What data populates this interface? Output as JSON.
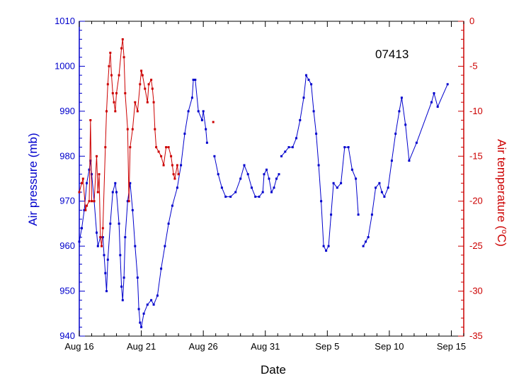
{
  "chart_data": {
    "type": "line",
    "annotation": "07413",
    "xlabel": "Date",
    "ylabel_left": "Air pressure (mb)",
    "ylabel_right_prefix": "Air temperature (",
    "ylabel_right_unit_sup": "o",
    "ylabel_right_unit": "C)",
    "x_unit": "days since Aug 16",
    "xlim": [
      0,
      31
    ],
    "x_ticks": [
      {
        "value": 0,
        "label": "Aug 16"
      },
      {
        "value": 5,
        "label": "Aug 21"
      },
      {
        "value": 10,
        "label": "Aug 26"
      },
      {
        "value": 15,
        "label": "Aug 31"
      },
      {
        "value": 20,
        "label": "Sep 5"
      },
      {
        "value": 25,
        "label": "Sep 10"
      },
      {
        "value": 30,
        "label": "Sep 15"
      }
    ],
    "ylim_left": [
      940,
      1010
    ],
    "yticks_left": [
      "1010",
      "1000",
      "990",
      "980",
      "970",
      "960",
      "950",
      "940"
    ],
    "ylim_right": [
      -35,
      0
    ],
    "yticks_right": [
      "0",
      "-5",
      "-10",
      "-15",
      "-20",
      "-25",
      "-30",
      "-35"
    ],
    "colors": {
      "pressure": "#0000cc",
      "temperature": "#cc0000"
    },
    "series": [
      {
        "name": "Air pressure",
        "axis": "left",
        "segments": [
          [
            [
              0.0,
              961
            ],
            [
              0.2,
              964
            ],
            [
              0.4,
              968
            ],
            [
              0.6,
              974
            ],
            [
              0.8,
              977
            ],
            [
              0.9,
              979
            ],
            [
              1.0,
              976
            ],
            [
              1.2,
              970
            ],
            [
              1.4,
              963
            ],
            [
              1.5,
              960
            ],
            [
              1.7,
              962
            ],
            [
              1.9,
              962
            ],
            [
              2.0,
              958
            ],
            [
              2.1,
              954
            ],
            [
              2.2,
              950
            ],
            [
              2.3,
              957
            ],
            [
              2.5,
              965
            ],
            [
              2.7,
              972
            ],
            [
              2.9,
              974
            ],
            [
              3.0,
              972
            ],
            [
              3.2,
              965
            ],
            [
              3.3,
              958
            ],
            [
              3.4,
              951
            ],
            [
              3.5,
              948
            ],
            [
              3.6,
              953
            ],
            [
              3.7,
              962
            ],
            [
              3.9,
              970
            ],
            [
              4.1,
              974
            ],
            [
              4.3,
              968
            ],
            [
              4.5,
              960
            ],
            [
              4.7,
              953
            ],
            [
              4.8,
              946
            ],
            [
              4.9,
              943
            ],
            [
              5.0,
              942
            ],
            [
              5.2,
              945
            ],
            [
              5.5,
              947
            ],
            [
              5.8,
              948
            ],
            [
              6.0,
              947
            ],
            [
              6.3,
              949
            ],
            [
              6.6,
              955
            ],
            [
              6.9,
              960
            ],
            [
              7.2,
              965
            ],
            [
              7.5,
              969
            ],
            [
              7.9,
              973
            ],
            [
              8.2,
              978
            ],
            [
              8.5,
              985
            ],
            [
              8.8,
              990
            ],
            [
              9.1,
              993
            ],
            [
              9.2,
              997
            ],
            [
              9.35,
              997
            ],
            [
              9.6,
              990
            ],
            [
              9.9,
              988
            ],
            [
              10.0,
              990
            ],
            [
              10.2,
              986
            ],
            [
              10.3,
              983
            ]
          ],
          [
            [
              10.9,
              980
            ],
            [
              11.2,
              976
            ],
            [
              11.5,
              973
            ],
            [
              11.8,
              971
            ],
            [
              12.2,
              971
            ],
            [
              12.6,
              972
            ],
            [
              13.0,
              975
            ],
            [
              13.3,
              978
            ],
            [
              13.6,
              976
            ],
            [
              13.9,
              973
            ],
            [
              14.2,
              971
            ],
            [
              14.5,
              971
            ],
            [
              14.8,
              972
            ],
            [
              14.9,
              976
            ],
            [
              15.1,
              977
            ],
            [
              15.3,
              975
            ],
            [
              15.5,
              972
            ],
            [
              15.7,
              973
            ],
            [
              15.9,
              975
            ],
            [
              16.1,
              976
            ]
          ],
          [
            [
              16.3,
              980
            ],
            [
              16.6,
              981
            ],
            [
              16.9,
              982
            ],
            [
              17.2,
              982
            ],
            [
              17.5,
              984
            ],
            [
              17.8,
              988
            ],
            [
              18.1,
              993
            ],
            [
              18.3,
              998
            ],
            [
              18.5,
              997
            ],
            [
              18.7,
              996
            ],
            [
              18.9,
              990
            ],
            [
              19.1,
              985
            ],
            [
              19.3,
              978
            ],
            [
              19.5,
              970
            ],
            [
              19.7,
              960
            ],
            [
              19.9,
              959
            ],
            [
              20.1,
              960
            ],
            [
              20.3,
              967
            ],
            [
              20.5,
              974
            ],
            [
              20.8,
              973
            ],
            [
              21.1,
              974
            ],
            [
              21.4,
              982
            ],
            [
              21.7,
              982
            ],
            [
              22.0,
              977
            ],
            [
              22.3,
              975
            ],
            [
              22.5,
              967
            ]
          ],
          [
            [
              22.9,
              960
            ],
            [
              23.1,
              961
            ],
            [
              23.3,
              962
            ],
            [
              23.6,
              967
            ],
            [
              23.9,
              973
            ],
            [
              24.2,
              974
            ],
            [
              24.4,
              972
            ],
            [
              24.6,
              971
            ],
            [
              24.9,
              973
            ],
            [
              25.2,
              979
            ],
            [
              25.5,
              985
            ],
            [
              25.8,
              990
            ],
            [
              26.0,
              993
            ],
            [
              26.3,
              987
            ],
            [
              26.6,
              979
            ],
            [
              27.2,
              983
            ],
            [
              28.4,
              992
            ],
            [
              28.6,
              994
            ],
            [
              28.9,
              991
            ],
            [
              29.7,
              996
            ]
          ]
        ]
      },
      {
        "name": "Air temperature",
        "axis": "right",
        "segments": [
          [
            [
              0.0,
              -19
            ],
            [
              0.2,
              -18
            ],
            [
              0.3,
              -17.5
            ],
            [
              0.5,
              -21
            ],
            [
              0.6,
              -20.5
            ],
            [
              0.8,
              -20
            ],
            [
              0.9,
              -11
            ],
            [
              1.0,
              -20
            ],
            [
              1.2,
              -20
            ],
            [
              1.4,
              -15
            ],
            [
              1.5,
              -19
            ],
            [
              1.6,
              -17
            ],
            [
              1.7,
              -24
            ],
            [
              1.8,
              -25
            ],
            [
              1.9,
              -23
            ],
            [
              2.1,
              -14
            ],
            [
              2.2,
              -10
            ],
            [
              2.3,
              -7
            ],
            [
              2.4,
              -5
            ],
            [
              2.5,
              -3.5
            ],
            [
              2.6,
              -6
            ],
            [
              2.7,
              -8
            ],
            [
              2.8,
              -9
            ],
            [
              2.9,
              -10
            ],
            [
              3.0,
              -8
            ],
            [
              3.2,
              -6
            ],
            [
              3.4,
              -3
            ],
            [
              3.5,
              -2
            ],
            [
              3.6,
              -4
            ],
            [
              3.7,
              -8
            ],
            [
              3.9,
              -12
            ],
            [
              4.0,
              -20
            ],
            [
              4.1,
              -14
            ],
            [
              4.3,
              -12
            ],
            [
              4.5,
              -9
            ],
            [
              4.7,
              -10
            ],
            [
              4.9,
              -7
            ],
            [
              5.0,
              -5.5
            ],
            [
              5.1,
              -6
            ],
            [
              5.3,
              -7.5
            ],
            [
              5.5,
              -9
            ],
            [
              5.6,
              -7
            ],
            [
              5.8,
              -6.5
            ],
            [
              5.9,
              -7.5
            ],
            [
              6.0,
              -9
            ],
            [
              6.1,
              -12
            ],
            [
              6.2,
              -14
            ],
            [
              6.4,
              -14.5
            ],
            [
              6.6,
              -15
            ],
            [
              6.8,
              -16
            ],
            [
              7.0,
              -14
            ],
            [
              7.2,
              -14
            ],
            [
              7.4,
              -15
            ],
            [
              7.5,
              -16
            ],
            [
              7.6,
              -17
            ],
            [
              7.7,
              -17.5
            ],
            [
              7.9,
              -16
            ],
            [
              8.0,
              -17
            ]
          ],
          [
            [
              10.8,
              -11.2
            ]
          ]
        ]
      }
    ]
  }
}
